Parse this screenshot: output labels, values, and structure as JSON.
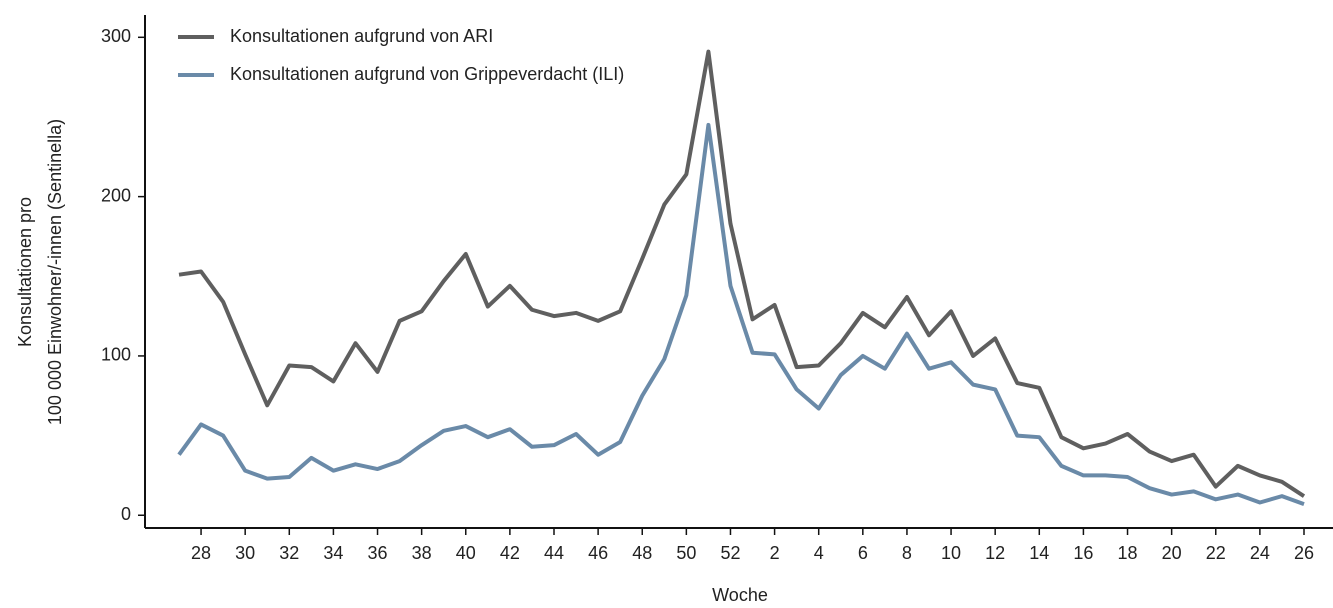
{
  "chart_data": {
    "type": "line",
    "xlabel": "Woche",
    "ylabel": [
      "Konsultationen pro",
      "100 000 Einwohner/-innen (Sentinella)"
    ],
    "categories": [
      null,
      "28",
      null,
      "30",
      null,
      "32",
      null,
      "34",
      null,
      "36",
      null,
      "38",
      null,
      "40",
      null,
      "42",
      null,
      "44",
      null,
      "46",
      null,
      "48",
      null,
      "50",
      null,
      "52",
      null,
      "2",
      null,
      "4",
      null,
      "6",
      null,
      "8",
      null,
      "10",
      null,
      "12",
      null,
      "14",
      null,
      "16",
      null,
      "18",
      null,
      "20",
      null,
      "22",
      null,
      "24",
      null,
      "26"
    ],
    "series": [
      {
        "name": "Konsultationen aufgrund von ARI",
        "color": "#5f5f5f",
        "values": [
          151,
          153,
          134,
          101,
          69,
          94,
          93,
          84,
          108,
          90,
          122,
          128,
          147,
          164,
          131,
          144,
          129,
          125,
          127,
          122,
          128,
          161,
          195,
          214,
          291,
          183,
          123,
          132,
          93,
          94,
          108,
          127,
          118,
          137,
          113,
          128,
          100,
          111,
          83,
          80,
          49,
          42,
          45,
          51,
          40,
          34,
          38,
          18,
          31,
          25,
          21,
          12
        ]
      },
      {
        "name": "Konsultationen aufgrund von Grippeverdacht (ILI)",
        "color": "#6a8aa8",
        "values": [
          38,
          57,
          50,
          28,
          23,
          24,
          36,
          28,
          32,
          29,
          34,
          44,
          53,
          56,
          49,
          54,
          43,
          44,
          51,
          38,
          46,
          75,
          98,
          138,
          245,
          144,
          102,
          101,
          79,
          67,
          88,
          100,
          92,
          114,
          92,
          96,
          82,
          79,
          50,
          49,
          31,
          25,
          25,
          24,
          17,
          13,
          15,
          10,
          13,
          8,
          12,
          7
        ]
      }
    ],
    "ylim": [
      -8,
      314
    ],
    "yticks": [
      0,
      100,
      200,
      300
    ],
    "legend": "upper left"
  }
}
